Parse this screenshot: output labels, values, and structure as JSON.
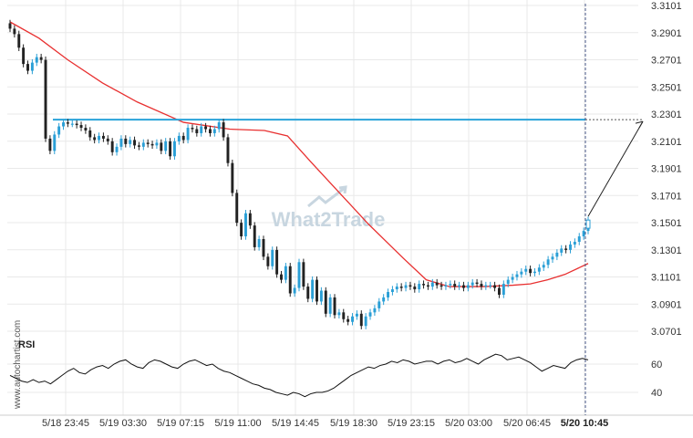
{
  "chart_data": {
    "type": "candlestick",
    "x_tick_labels": [
      "5/18 23:45",
      "5/19 03:30",
      "5/19 07:15",
      "5/19 11:00",
      "5/19 14:45",
      "5/19 18:30",
      "5/19 23:15",
      "5/20 03:00",
      "5/20 06:45",
      "5/20 10:45"
    ],
    "y_tick_labels": [
      "3.3101",
      "3.2901",
      "3.2701",
      "3.2501",
      "3.2301",
      "3.2101",
      "3.1901",
      "3.1701",
      "3.1501",
      "3.1301",
      "3.1101",
      "3.0901",
      "3.0701"
    ],
    "ylim": [
      3.06,
      3.31
    ],
    "resistance_level": 3.226,
    "projected_target": 3.226,
    "last_close": 3.152,
    "colors": {
      "candle_up": "#2a9fd6",
      "candle_down": "#222222",
      "moving_average": "#e83030",
      "resistance_line": "#29a3d9",
      "rsi_line": "#111111",
      "arrow": "#222222",
      "grid": "#e9e9e9"
    },
    "closes": [
      3.293,
      3.289,
      3.279,
      3.267,
      3.262,
      3.268,
      3.272,
      3.27,
      3.212,
      3.203,
      3.215,
      3.221,
      3.224,
      3.223,
      3.223,
      3.222,
      3.22,
      3.218,
      3.213,
      3.211,
      3.214,
      3.212,
      3.21,
      3.202,
      3.206,
      3.212,
      3.208,
      3.211,
      3.207,
      3.206,
      3.209,
      3.208,
      3.207,
      3.209,
      3.203,
      3.21,
      3.199,
      3.21,
      3.214,
      3.211,
      3.22,
      3.219,
      3.216,
      3.221,
      3.219,
      3.216,
      3.219,
      3.224,
      3.213,
      3.194,
      3.172,
      3.15,
      3.14,
      3.157,
      3.148,
      3.132,
      3.138,
      3.125,
      3.118,
      3.13,
      3.112,
      3.108,
      3.118,
      3.098,
      3.102,
      3.121,
      3.103,
      3.094,
      3.108,
      3.092,
      3.1,
      3.083,
      3.095,
      3.082,
      3.084,
      3.079,
      3.077,
      3.081,
      3.083,
      3.074,
      3.081,
      3.084,
      3.087,
      3.092,
      3.095,
      3.099,
      3.101,
      3.103,
      3.102,
      3.104,
      3.103,
      3.101,
      3.105,
      3.104,
      3.103,
      3.106,
      3.104,
      3.103,
      3.104,
      3.105,
      3.103,
      3.104,
      3.102,
      3.104,
      3.106,
      3.105,
      3.103,
      3.104,
      3.104,
      3.102,
      3.097,
      3.105,
      3.108,
      3.11,
      3.112,
      3.114,
      3.116,
      3.113,
      3.114,
      3.117,
      3.119,
      3.123,
      3.125,
      3.128,
      3.131,
      3.13,
      3.134,
      3.136,
      3.14,
      3.144,
      3.152
    ],
    "moving_average": [
      [
        0.0,
        3.298
      ],
      [
        0.05,
        3.286
      ],
      [
        0.1,
        3.27
      ],
      [
        0.16,
        3.253
      ],
      [
        0.22,
        3.239
      ],
      [
        0.3,
        3.224
      ],
      [
        0.38,
        3.219
      ],
      [
        0.44,
        3.218
      ],
      [
        0.48,
        3.214
      ],
      [
        0.52,
        3.195
      ],
      [
        0.57,
        3.172
      ],
      [
        0.62,
        3.149
      ],
      [
        0.68,
        3.124
      ],
      [
        0.72,
        3.108
      ],
      [
        0.76,
        3.103
      ],
      [
        0.82,
        3.103
      ],
      [
        0.87,
        3.104
      ],
      [
        0.9,
        3.105
      ],
      [
        0.93,
        3.108
      ],
      [
        0.96,
        3.112
      ],
      [
        1.0,
        3.12
      ]
    ],
    "rsi": {
      "title": "RSI",
      "ticks": [
        "60",
        "40"
      ],
      "ylim": [
        30,
        75
      ],
      "values": [
        52,
        50,
        48,
        47,
        49,
        47,
        48,
        46,
        49,
        52,
        55,
        57,
        54,
        53,
        56,
        58,
        59,
        57,
        60,
        62,
        63,
        60,
        58,
        57,
        61,
        63,
        62,
        60,
        58,
        57,
        60,
        62,
        63,
        61,
        59,
        60,
        57,
        55,
        54,
        52,
        50,
        48,
        46,
        45,
        43,
        42,
        40,
        39,
        38,
        40,
        39,
        37,
        39,
        40,
        40,
        41,
        43,
        46,
        49,
        52,
        54,
        56,
        58,
        57,
        59,
        60,
        62,
        61,
        63,
        62,
        60,
        61,
        62,
        62,
        60,
        62,
        63,
        61,
        62,
        64,
        62,
        60,
        63,
        65,
        67,
        66,
        63,
        64,
        65,
        63,
        61,
        58,
        55,
        57,
        59,
        58,
        57,
        61,
        63,
        64,
        63
      ]
    }
  },
  "watermark": {
    "side_text": "www.autochartist.com",
    "center_text": "What2Trade"
  }
}
